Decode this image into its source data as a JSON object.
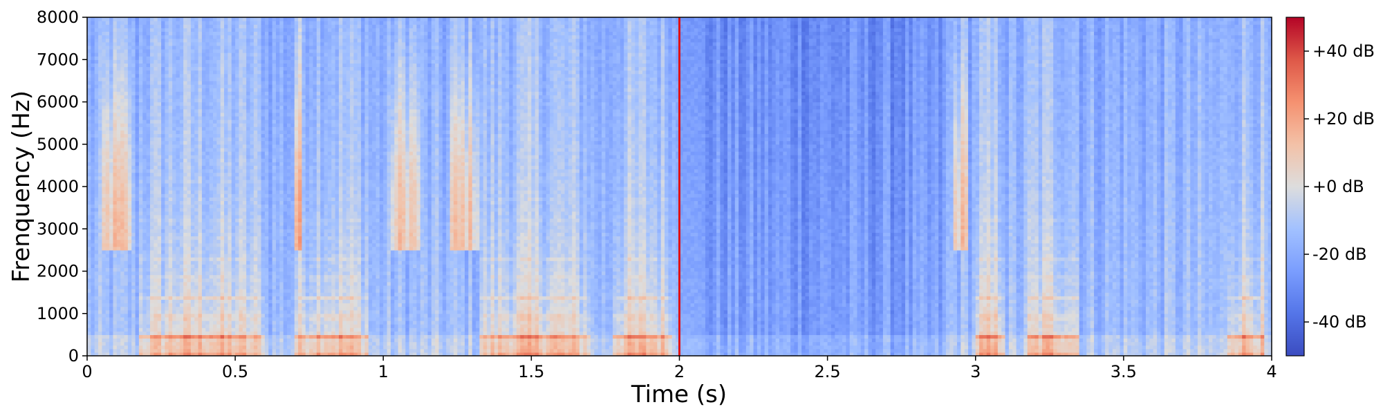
{
  "chart_data": {
    "type": "heatmap",
    "title": "",
    "xlabel": "Time (s)",
    "ylabel": "Frenquency (Hz)",
    "xlim": [
      0,
      4
    ],
    "ylim": [
      0,
      8000
    ],
    "x_ticks": [
      0,
      0.5,
      1,
      1.5,
      2,
      2.5,
      3,
      3.5,
      4
    ],
    "x_tick_labels": [
      "0",
      "0.5",
      "1",
      "1.5",
      "2",
      "2.5",
      "3",
      "3.5",
      "4"
    ],
    "y_ticks": [
      0,
      1000,
      2000,
      3000,
      4000,
      5000,
      6000,
      7000,
      8000
    ],
    "y_tick_labels": [
      "0",
      "1000",
      "2000",
      "3000",
      "4000",
      "5000",
      "6000",
      "7000",
      "8000"
    ],
    "colormap": "coolwarm",
    "colorbar": {
      "range_db": [
        -50,
        50
      ],
      "ticks": [
        40,
        20,
        0,
        -20,
        -40
      ],
      "tick_labels": [
        "+40 dB",
        "+20 dB",
        "+0 dB",
        "-20 dB",
        "-40 dB"
      ]
    },
    "marker_line": {
      "x": 2,
      "color": "#e01010"
    },
    "grid": false,
    "z_description_db": {
      "low_freq_voiced_segments_s": [
        [
          0.18,
          0.6
        ],
        [
          0.7,
          0.95
        ],
        [
          1.33,
          1.7
        ],
        [
          1.77,
          1.98
        ],
        [
          3.0,
          3.1
        ],
        [
          3.17,
          3.35
        ],
        [
          3.85,
          3.98
        ]
      ],
      "high_freq_fricative_segments_s": [
        [
          0.05,
          0.15
        ],
        [
          0.7,
          0.72
        ],
        [
          1.03,
          1.12
        ],
        [
          1.22,
          1.32
        ],
        [
          2.93,
          2.97
        ]
      ]
    }
  },
  "colors": {
    "cmap_low": "#3b4cc0",
    "cmap_mid": "#dddddd",
    "cmap_high": "#b40426"
  }
}
